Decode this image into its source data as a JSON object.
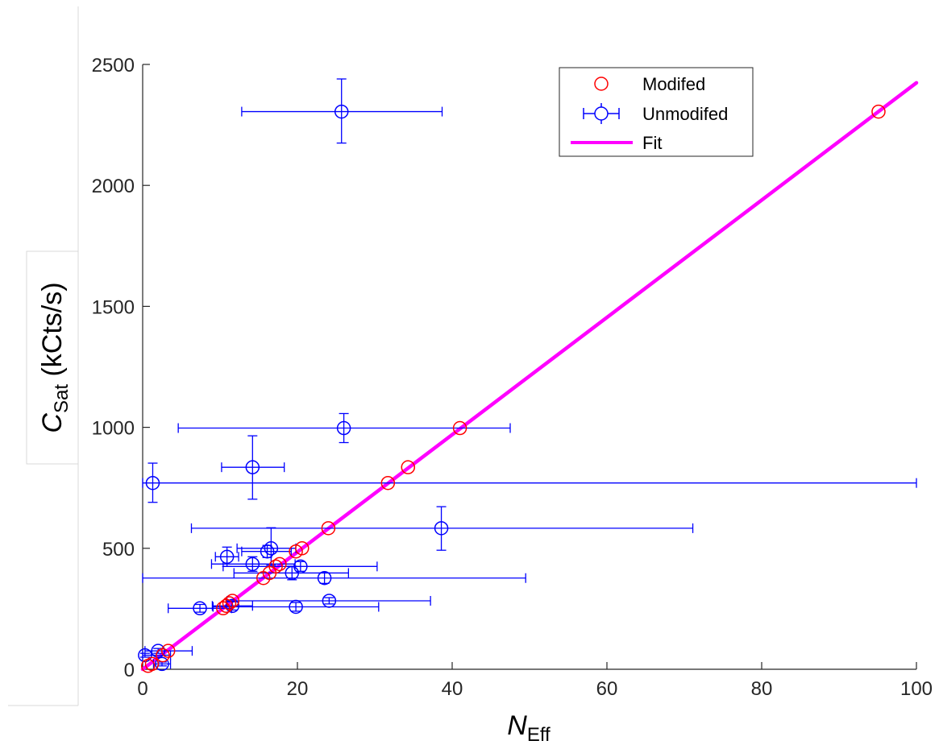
{
  "chart_data": {
    "type": "scatter",
    "title": "",
    "xlabel": {
      "main": "N",
      "sub": "Eff"
    },
    "ylabel": {
      "main": "C",
      "sub": "Sat",
      "rest": " (kCts/s)"
    },
    "xlim": [
      0,
      100
    ],
    "ylim": [
      0,
      2500
    ],
    "xticks": [
      "0",
      "20",
      "40",
      "60",
      "80",
      "100"
    ],
    "yticks": [
      "0",
      "500",
      "1000",
      "1500",
      "2000",
      "2500"
    ],
    "grid": false,
    "legend_position": "top-right",
    "colors": {
      "modified": "#ff0000",
      "unmodified": "#0000ff",
      "fit": "#ff00ff"
    },
    "series": [
      {
        "name": "Modifed",
        "marker": "circle",
        "color": "#ff0000",
        "points": [
          {
            "x": 95.1,
            "y": 2305
          },
          {
            "x": 41.0,
            "y": 997
          },
          {
            "x": 34.3,
            "y": 835
          },
          {
            "x": 31.7,
            "y": 770
          },
          {
            "x": 24.0,
            "y": 583
          },
          {
            "x": 20.6,
            "y": 500
          },
          {
            "x": 19.8,
            "y": 487
          },
          {
            "x": 17.7,
            "y": 435
          },
          {
            "x": 17.2,
            "y": 425
          },
          {
            "x": 16.4,
            "y": 398
          },
          {
            "x": 15.6,
            "y": 377
          },
          {
            "x": 11.6,
            "y": 283
          },
          {
            "x": 11.2,
            "y": 273
          },
          {
            "x": 10.8,
            "y": 262
          },
          {
            "x": 10.4,
            "y": 252
          },
          {
            "x": 3.3,
            "y": 76
          },
          {
            "x": 2.6,
            "y": 58
          },
          {
            "x": 1.2,
            "y": 22
          },
          {
            "x": 0.7,
            "y": 14
          }
        ]
      },
      {
        "name": "Unmodifed",
        "marker": "circle",
        "color": "#0000ff",
        "points": [
          {
            "x": 25.7,
            "y": 2305,
            "xerr": [
              12.8,
              38.7
            ],
            "yerr": [
              2175,
              2440
            ]
          },
          {
            "x": 26.0,
            "y": 997,
            "xerr": [
              4.6,
              47.5
            ],
            "yerr": [
              937,
              1057
            ]
          },
          {
            "x": 14.2,
            "y": 835,
            "xerr": [
              10.2,
              18.3
            ],
            "yerr": [
              703,
              965
            ]
          },
          {
            "x": 1.3,
            "y": 770,
            "xerr": [
              0,
              100
            ],
            "yerr": [
              690,
              852
            ]
          },
          {
            "x": 38.6,
            "y": 583,
            "xerr": [
              6.3,
              71.1
            ],
            "yerr": [
              492,
              672
            ]
          },
          {
            "x": 16.6,
            "y": 500,
            "xerr": [
              12.2,
              19.8
            ],
            "yerr": [
              430,
              585
            ]
          },
          {
            "x": 16.1,
            "y": 487,
            "xerr": [
              12.8,
              19.2
            ],
            "yerr": [
              462,
              512
            ]
          },
          {
            "x": 10.9,
            "y": 465,
            "xerr": [
              9.4,
              12.4
            ],
            "yerr": [
              425,
              505
            ]
          },
          {
            "x": 14.2,
            "y": 435,
            "xerr": [
              8.9,
              19.7
            ],
            "yerr": [
              405,
              465
            ]
          },
          {
            "x": 20.4,
            "y": 425,
            "xerr": [
              10.4,
              30.3
            ],
            "yerr": [
              405,
              445
            ]
          },
          {
            "x": 19.3,
            "y": 398,
            "xerr": [
              11.8,
              26.6
            ],
            "yerr": [
              370,
              426
            ]
          },
          {
            "x": 23.5,
            "y": 377,
            "xerr": [
              0,
              49.5
            ],
            "yerr": [
              355,
              399
            ]
          },
          {
            "x": 24.1,
            "y": 283,
            "xerr": [
              10.9,
              37.2
            ],
            "yerr": [
              270,
              296
            ]
          },
          {
            "x": 11.6,
            "y": 262,
            "xerr": [
              9.0,
              14.2
            ],
            "yerr": [
              245,
              279
            ]
          },
          {
            "x": 19.8,
            "y": 258,
            "xerr": [
              9.1,
              30.5
            ],
            "yerr": [
              240,
              276
            ]
          },
          {
            "x": 7.4,
            "y": 252,
            "xerr": [
              3.3,
              11.5
            ],
            "yerr": [
              236,
              268
            ]
          },
          {
            "x": 0.3,
            "y": 58,
            "xerr": [
              0,
              3.6
            ],
            "yerr": [
              50,
              66
            ]
          },
          {
            "x": 2.0,
            "y": 76,
            "xerr": [
              0.3,
              6.4
            ],
            "yerr": [
              66,
              86
            ]
          },
          {
            "x": 2.5,
            "y": 22,
            "xerr": [
              1.4,
              3.6
            ],
            "yerr": [
              14,
              30
            ]
          }
        ]
      },
      {
        "name": "Fit",
        "type": "line",
        "color": "#ff00ff",
        "points": [
          {
            "x": 0,
            "y": 0
          },
          {
            "x": 100,
            "y": 2424
          }
        ]
      }
    ]
  }
}
